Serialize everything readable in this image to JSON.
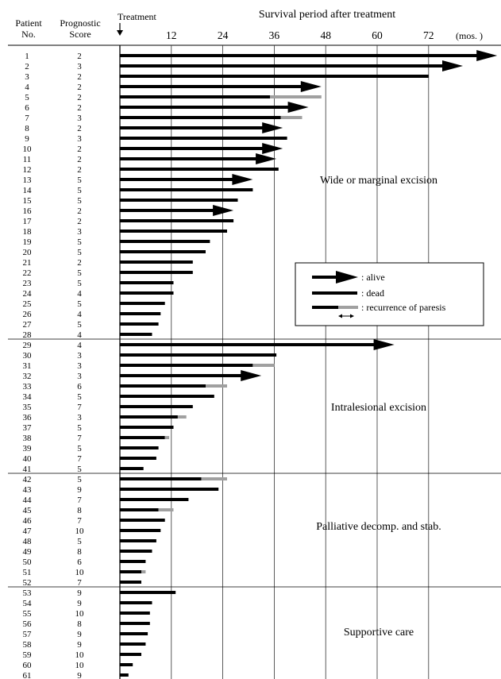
{
  "header": {
    "col_patient": [
      "Patient",
      "No."
    ],
    "col_score": [
      "Prognostic",
      "Score"
    ],
    "treatment": "Treatment",
    "title": "Survival period after treatment",
    "units": "(mos. )"
  },
  "chart_data": {
    "type": "bar",
    "orientation": "horizontal",
    "title": "Survival period after treatment",
    "xlabel": "(mos. )",
    "xlim": [
      0,
      84
    ],
    "xticks": [
      12,
      24,
      36,
      48,
      60,
      72
    ],
    "grid": true,
    "legend_position": "right-middle",
    "colors": {
      "bar": "#000000",
      "recurrence": "#a0a0a0"
    },
    "patients": [
      {
        "no": "1",
        "score": "2",
        "months": 88,
        "status": "alive"
      },
      {
        "no": "2",
        "score": "3",
        "months": 80,
        "status": "alive"
      },
      {
        "no": "3",
        "score": "2",
        "months": 72,
        "status": "dead"
      },
      {
        "no": "4",
        "score": "2",
        "months": 47,
        "status": "alive"
      },
      {
        "no": "5",
        "score": "2",
        "months": 47,
        "status": "dead",
        "recurrence": 35
      },
      {
        "no": "6",
        "score": "2",
        "months": 44,
        "status": "alive"
      },
      {
        "no": "7",
        "score": "3",
        "months": 42.5,
        "status": "dead",
        "recurrence": 37.5
      },
      {
        "no": "8",
        "score": "2",
        "months": 38,
        "status": "alive"
      },
      {
        "no": "9",
        "score": "3",
        "months": 39,
        "status": "dead"
      },
      {
        "no": "10",
        "score": "2",
        "months": 38,
        "status": "alive"
      },
      {
        "no": "11",
        "score": "2",
        "months": 36.5,
        "status": "alive"
      },
      {
        "no": "12",
        "score": "2",
        "months": 37,
        "status": "dead"
      },
      {
        "no": "13",
        "score": "5",
        "months": 31,
        "status": "alive"
      },
      {
        "no": "14",
        "score": "5",
        "months": 31,
        "status": "dead"
      },
      {
        "no": "15",
        "score": "5",
        "months": 27.5,
        "status": "dead"
      },
      {
        "no": "16",
        "score": "2",
        "months": 26.5,
        "status": "alive"
      },
      {
        "no": "17",
        "score": "2",
        "months": 26.5,
        "status": "dead"
      },
      {
        "no": "18",
        "score": "3",
        "months": 25,
        "status": "dead"
      },
      {
        "no": "19",
        "score": "5",
        "months": 21,
        "status": "dead"
      },
      {
        "no": "20",
        "score": "5",
        "months": 20,
        "status": "dead"
      },
      {
        "no": "21",
        "score": "2",
        "months": 17,
        "status": "dead"
      },
      {
        "no": "22",
        "score": "5",
        "months": 17,
        "status": "dead"
      },
      {
        "no": "23",
        "score": "5",
        "months": 12.5,
        "status": "dead"
      },
      {
        "no": "24",
        "score": "4",
        "months": 12.5,
        "status": "dead"
      },
      {
        "no": "25",
        "score": "5",
        "months": 10.5,
        "status": "dead"
      },
      {
        "no": "26",
        "score": "4",
        "months": 9.5,
        "status": "dead"
      },
      {
        "no": "27",
        "score": "5",
        "months": 9,
        "status": "dead"
      },
      {
        "no": "28",
        "score": "4",
        "months": 7.5,
        "status": "dead"
      },
      {
        "no": "29",
        "score": "4",
        "months": 64,
        "status": "alive"
      },
      {
        "no": "30",
        "score": "3",
        "months": 36.5,
        "status": "dead"
      },
      {
        "no": "31",
        "score": "3",
        "months": 36,
        "status": "dead",
        "recurrence": 31
      },
      {
        "no": "32",
        "score": "3",
        "months": 33,
        "status": "alive"
      },
      {
        "no": "33",
        "score": "6",
        "months": 25,
        "status": "dead",
        "recurrence": 20
      },
      {
        "no": "34",
        "score": "5",
        "months": 22,
        "status": "dead"
      },
      {
        "no": "35",
        "score": "7",
        "months": 17,
        "status": "dead"
      },
      {
        "no": "36",
        "score": "3",
        "months": 15.5,
        "status": "dead",
        "recurrence": 13.5
      },
      {
        "no": "37",
        "score": "5",
        "months": 12.5,
        "status": "dead"
      },
      {
        "no": "38",
        "score": "7",
        "months": 11.5,
        "status": "dead",
        "recurrence": 10.5
      },
      {
        "no": "39",
        "score": "5",
        "months": 9,
        "status": "dead"
      },
      {
        "no": "40",
        "score": "7",
        "months": 8.5,
        "status": "dead"
      },
      {
        "no": "41",
        "score": "5",
        "months": 5.5,
        "status": "dead"
      },
      {
        "no": "42",
        "score": "5",
        "months": 25,
        "status": "dead",
        "recurrence": 19
      },
      {
        "no": "43",
        "score": "9",
        "months": 23,
        "status": "dead"
      },
      {
        "no": "44",
        "score": "7",
        "months": 16,
        "status": "dead"
      },
      {
        "no": "45",
        "score": "8",
        "months": 12.5,
        "status": "dead",
        "recurrence": 9
      },
      {
        "no": "46",
        "score": "7",
        "months": 10.5,
        "status": "dead"
      },
      {
        "no": "47",
        "score": "10",
        "months": 9.5,
        "status": "dead"
      },
      {
        "no": "48",
        "score": "5",
        "months": 8.5,
        "status": "dead"
      },
      {
        "no": "49",
        "score": "8",
        "months": 7.5,
        "status": "dead"
      },
      {
        "no": "50",
        "score": "6",
        "months": 6,
        "status": "dead"
      },
      {
        "no": "51",
        "score": "10",
        "months": 6,
        "status": "dead",
        "recurrence": 5
      },
      {
        "no": "52",
        "score": "7",
        "months": 5,
        "status": "dead"
      },
      {
        "no": "53",
        "score": "9",
        "months": 13,
        "status": "dead"
      },
      {
        "no": "54",
        "score": "9",
        "months": 7.5,
        "status": "dead"
      },
      {
        "no": "55",
        "score": "10",
        "months": 7,
        "status": "dead"
      },
      {
        "no": "56",
        "score": "8",
        "months": 7,
        "status": "dead"
      },
      {
        "no": "57",
        "score": "9",
        "months": 6.5,
        "status": "dead"
      },
      {
        "no": "58",
        "score": "9",
        "months": 6,
        "status": "dead"
      },
      {
        "no": "59",
        "score": "10",
        "months": 5,
        "status": "dead"
      },
      {
        "no": "60",
        "score": "10",
        "months": 3,
        "status": "dead"
      },
      {
        "no": "61",
        "score": "9",
        "months": 2,
        "status": "dead"
      }
    ],
    "groups": [
      {
        "label": "Wide or marginal excision",
        "first": 1,
        "last": 28
      },
      {
        "label": "Intralesional excision",
        "first": 29,
        "last": 41
      },
      {
        "label": "Palliative decomp. and stab.",
        "first": 42,
        "last": 52
      },
      {
        "label": "Supportive care",
        "first": 53,
        "last": 61
      }
    ],
    "legend": [
      {
        "key": "alive",
        "label": ": alive"
      },
      {
        "key": "dead",
        "label": ": dead"
      },
      {
        "key": "recurrence",
        "label": ": recurrence of paresis"
      }
    ]
  }
}
